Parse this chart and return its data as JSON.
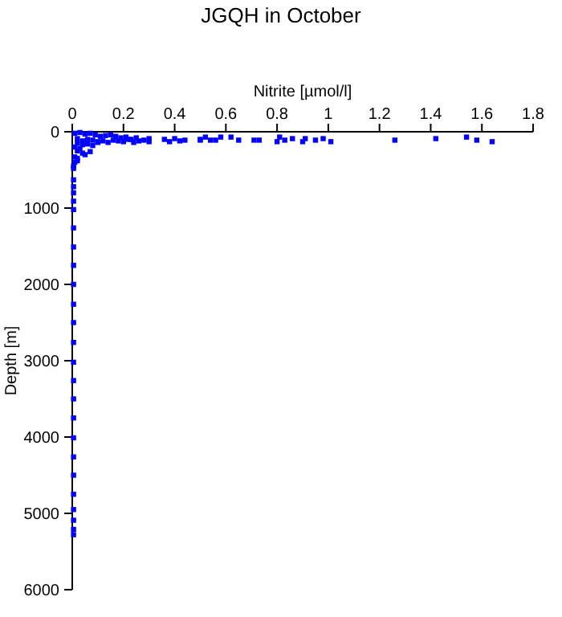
{
  "chart_data": {
    "type": "scatter",
    "title": "JGQH in October",
    "xlabel": "Nitrite [µmol/l]",
    "ylabel": "Depth [m]",
    "xlim": [
      0,
      1.8
    ],
    "xticks": [
      0,
      0.2,
      0.4,
      0.6,
      0.8,
      1,
      1.2,
      1.4,
      1.6,
      1.8
    ],
    "ylim": [
      6000,
      0
    ],
    "yticks": [
      0,
      1000,
      2000,
      3000,
      4000,
      5000,
      6000
    ],
    "marker": "square",
    "grid": false,
    "series": [
      {
        "color": "#0000ff",
        "x": [
          1.26,
          1.42,
          1.54,
          1.58,
          1.64,
          1.01,
          0.98,
          0.95,
          0.91,
          0.9,
          0.86,
          0.83,
          0.81,
          0.8,
          0.73,
          0.71,
          0.65,
          0.62,
          0.58,
          0.56,
          0.52,
          0.5,
          0.36,
          0.4,
          0.44,
          0.5,
          0.54,
          0.38,
          0.42,
          0.3,
          0.28,
          0.26,
          0.24,
          0.22,
          0.2,
          0.18,
          0.16,
          0.14,
          0.12,
          0.1,
          0.08,
          0.06,
          0.04,
          0.02,
          0.01,
          0.3,
          0.25,
          0.21,
          0.17,
          0.13,
          0.09,
          0.05,
          0.03,
          0.07,
          0.11,
          0.15,
          0.19,
          0.23,
          0.02,
          0.04,
          0.06,
          0.08,
          0.1,
          0.01,
          0.02,
          0.03,
          0.05,
          0.07,
          0.01,
          0.02,
          0.04,
          0.01,
          0.02,
          0.005,
          0.005,
          0.005,
          0.005,
          0.005,
          0.005,
          0.005,
          0.005,
          0.005,
          0.005,
          0.005,
          0.005,
          0.005,
          0.005,
          0.005,
          0.005,
          0.005,
          0.005,
          0.005,
          0.005,
          0.005,
          0.005,
          0.005,
          0.005,
          0.005,
          0.005
        ],
        "values": [
          110,
          90,
          70,
          110,
          130,
          130,
          90,
          110,
          90,
          130,
          90,
          110,
          70,
          130,
          110,
          110,
          110,
          70,
          70,
          110,
          70,
          110,
          100,
          90,
          110,
          100,
          110,
          130,
          120,
          130,
          110,
          120,
          140,
          100,
          130,
          120,
          110,
          140,
          120,
          130,
          110,
          100,
          120,
          90,
          20,
          90,
          80,
          70,
          60,
          50,
          40,
          30,
          10,
          20,
          60,
          40,
          80,
          100,
          150,
          170,
          160,
          180,
          140,
          200,
          250,
          220,
          300,
          260,
          330,
          380,
          280,
          400,
          350,
          450,
          480,
          630,
          720,
          800,
          910,
          1020,
          1260,
          1510,
          1750,
          2000,
          2260,
          2500,
          2760,
          3020,
          3260,
          3500,
          3750,
          4010,
          4260,
          4500,
          4750,
          4950,
          5090,
          5210,
          5280
        ]
      }
    ]
  }
}
